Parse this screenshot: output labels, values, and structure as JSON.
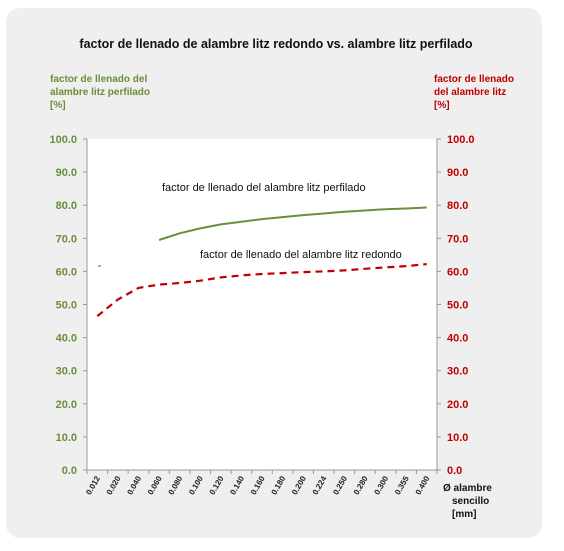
{
  "chart_data": {
    "type": "line",
    "title": "factor de llenado de alambre litz redondo vs. alambre litz perfilado",
    "ylabel_left": [
      "factor de llenado del",
      "alambre litz perfilado",
      "[%]"
    ],
    "ylabel_right": [
      "factor de llenado",
      "del alambre litz",
      "[%]"
    ],
    "xlabel": [
      "Ø alambre",
      "sencillo",
      "[mm]"
    ],
    "x_categories": [
      "0.012",
      "0.020",
      "0.040",
      "0.060",
      "0.080",
      "0.100",
      "0.120",
      "0.140",
      "0.160",
      "0.180",
      "0.200",
      "0.224",
      "0.250",
      "0.280",
      "0.300",
      "0.355",
      "0.400"
    ],
    "y_ticks": [
      "0.0",
      "10.0",
      "20.0",
      "30.0",
      "40.0",
      "50.0",
      "60.0",
      "70.0",
      "80.0",
      "90.0",
      "100.0"
    ],
    "ylim": [
      0,
      100
    ],
    "grid": false,
    "colors": {
      "profiled": "#6b8e3a",
      "round": "#c00000",
      "left_axis": "#6b8e3a",
      "right_axis": "#c00000"
    },
    "series": [
      {
        "name": "factor de llenado del alambre litz perfilado",
        "line_style": "solid",
        "x": [
          "0.060",
          "0.080",
          "0.100",
          "0.120",
          "0.140",
          "0.160",
          "0.180",
          "0.200",
          "0.224",
          "0.250",
          "0.280",
          "0.300",
          "0.355",
          "0.400"
        ],
        "values": [
          69.5,
          71.5,
          73.0,
          74.2,
          75.0,
          75.8,
          76.4,
          77.0,
          77.5,
          78.0,
          78.4,
          78.8,
          79.0,
          79.3
        ]
      },
      {
        "name": "factor de llenado del alambre litz redondo",
        "line_style": "dashed",
        "x": [
          "0.012",
          "0.020",
          "0.040",
          "0.060",
          "0.080",
          "0.100",
          "0.120",
          "0.140",
          "0.160",
          "0.180",
          "0.200",
          "0.224",
          "0.250",
          "0.280",
          "0.300",
          "0.355",
          "0.400"
        ],
        "values": [
          46.5,
          51.5,
          55.0,
          56.0,
          56.5,
          57.2,
          58.2,
          58.8,
          59.2,
          59.5,
          59.8,
          60.0,
          60.3,
          60.8,
          61.2,
          61.6,
          62.2
        ]
      }
    ]
  }
}
